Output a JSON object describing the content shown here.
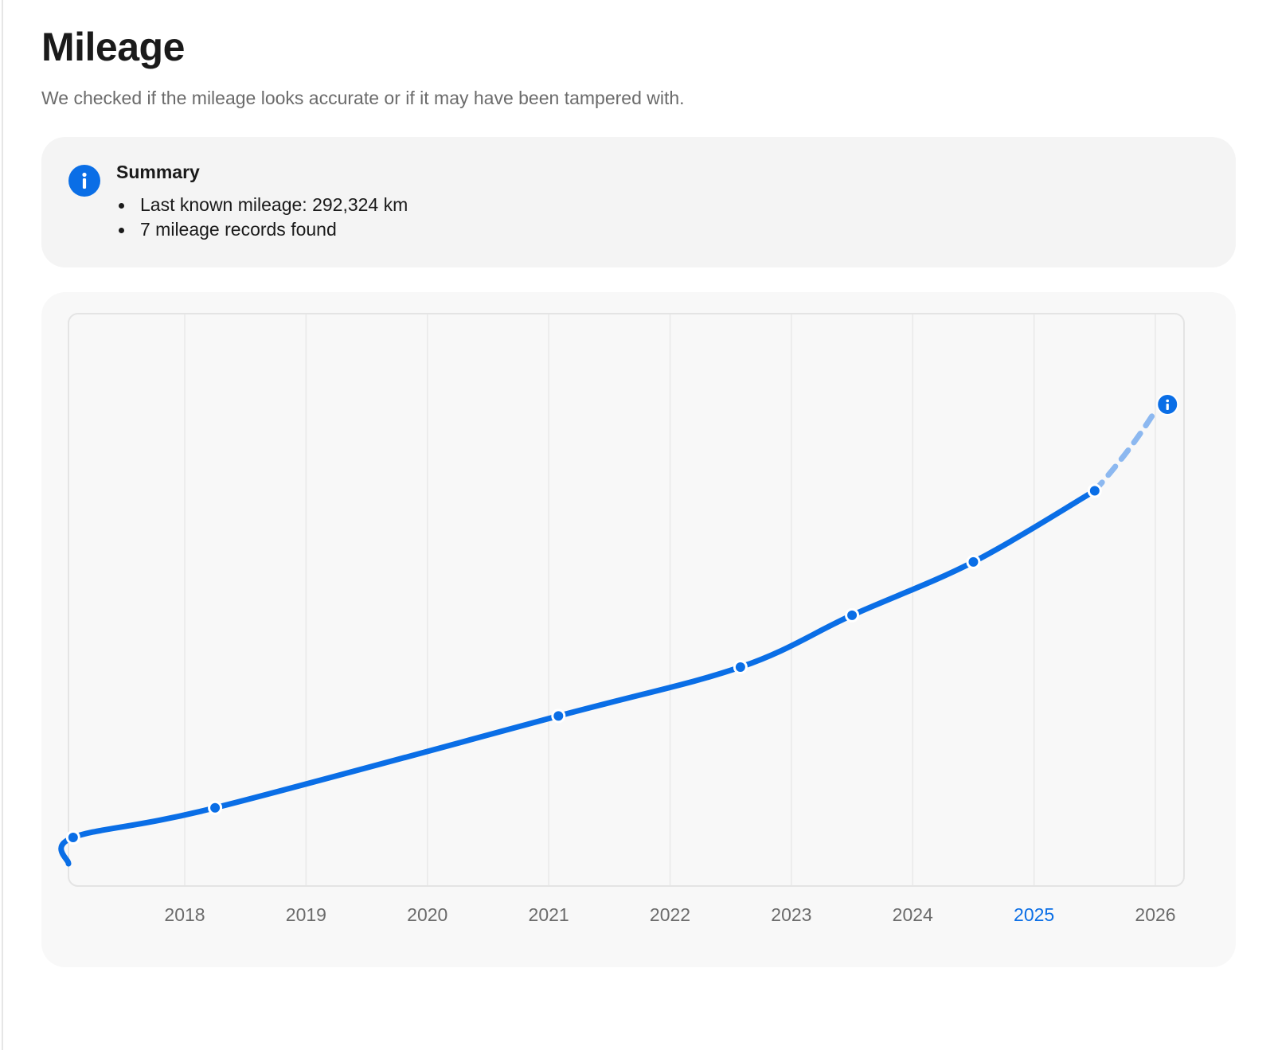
{
  "header": {
    "title": "Mileage",
    "subtitle": "We checked if the mileage looks accurate or if it may have been tampered with."
  },
  "summary": {
    "heading": "Summary",
    "icon": "info-icon",
    "items": [
      "Last known mileage: 292,324 km",
      "7 mileage records found"
    ]
  },
  "colors": {
    "accent": "#0a6ee6",
    "accent_light": "#8cb8f0",
    "grid": "#e9e9e9",
    "tick_label": "#6b6b6b",
    "tick_label_active": "#0a6ee6"
  },
  "chart_data": {
    "type": "line",
    "xlabel": "",
    "ylabel": "",
    "x_ticks": [
      "2018",
      "2019",
      "2020",
      "2021",
      "2022",
      "2023",
      "2024",
      "2025",
      "2026"
    ],
    "active_tick": "2025",
    "series": [
      {
        "points": [
          {
            "x": 2017.08,
            "y": 0
          },
          {
            "x": 2018.25,
            "y": 20000
          },
          {
            "x": 2021.08,
            "y": 82000
          },
          {
            "x": 2022.58,
            "y": 115000
          },
          {
            "x": 2023.5,
            "y": 150000
          },
          {
            "x": 2024.5,
            "y": 186000
          },
          {
            "x": 2025.5,
            "y": 234000
          }
        ],
        "projected": [
          {
            "x": 2025.5,
            "y": 234000
          },
          {
            "x": 2026.1,
            "y": 292324
          }
        ]
      }
    ],
    "grid": true,
    "legend": "none"
  }
}
